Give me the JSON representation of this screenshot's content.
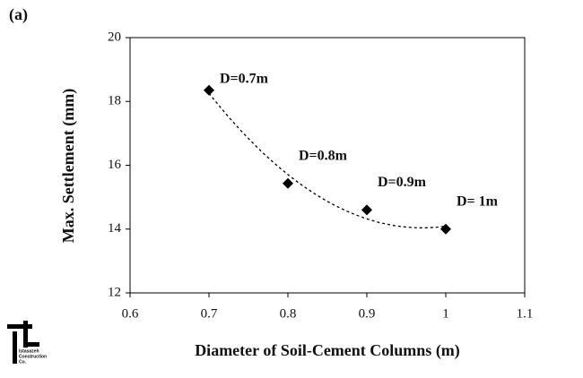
{
  "chart_data": {
    "type": "scatter",
    "panel_label": "(a)",
    "x_label": "Diameter of Soil-Cement Columns (m)",
    "y_label": "Max. Settlement (mm)",
    "x": [
      0.7,
      0.8,
      0.9,
      1.0
    ],
    "values": [
      18.35,
      15.43,
      14.6,
      14.0
    ],
    "point_labels": [
      "D=0.7m",
      "D=0.8m",
      "D=0.9m",
      "D= 1m"
    ],
    "color": "#000000",
    "trendline": "polynomial",
    "xlim": [
      0.6,
      1.1
    ],
    "xticks": [
      0.6,
      0.7,
      0.8,
      0.9,
      1,
      1.1
    ],
    "ylim": [
      12,
      20
    ],
    "yticks": [
      12,
      14,
      16,
      18,
      20
    ],
    "grid": false
  },
  "logo": {
    "lines": [
      "Istasazeh",
      "Construction",
      "Co."
    ]
  }
}
